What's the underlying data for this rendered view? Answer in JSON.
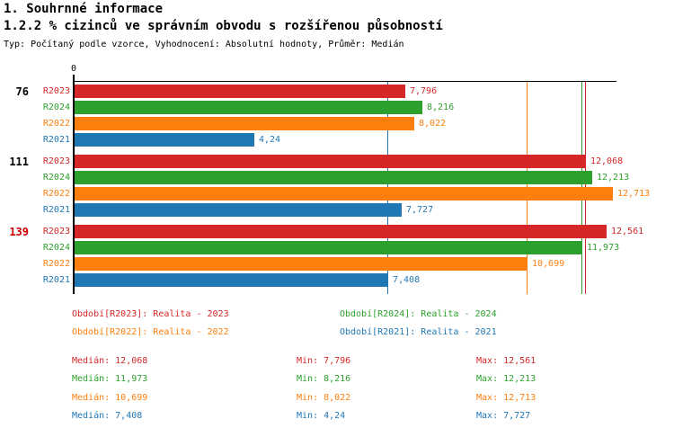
{
  "header": {
    "title": "1. Souhrnné informace",
    "subtitle": "1.2.2 % cizinců ve správním obvodu s rozšířenou působností",
    "meta": "Typ: Počítaný podle vzorce, Vyhodnocení: Absolutní hodnoty, Průměr: Medián"
  },
  "chart_data": {
    "type": "bar",
    "orientation": "horizontal",
    "title": "1.2.2 % cizinců ve správním obvodu s rozšířenou působností",
    "origin_label": "0",
    "xlim": [
      0,
      12.8
    ],
    "grid": false,
    "legend_position": "bottom",
    "group_labels": [
      "76",
      "111",
      "139"
    ],
    "group_label_colors": [
      "#000000",
      "#000000",
      "#cc0000"
    ],
    "series": [
      {
        "name": "R2023",
        "color": "#d62728",
        "values": [
          7.796,
          12.068,
          12.561
        ],
        "value_labels": [
          "7,796",
          "12,068",
          "12,561"
        ],
        "median": 12.068
      },
      {
        "name": "R2024",
        "color": "#2ca02c",
        "values": [
          8.216,
          12.213,
          11.973
        ],
        "value_labels": [
          "8,216",
          "12,213",
          "11,973"
        ],
        "median": 11.973
      },
      {
        "name": "R2022",
        "color": "#ff7f0e",
        "values": [
          8.022,
          12.713,
          10.699
        ],
        "value_labels": [
          "8,022",
          "12,713",
          "10,699"
        ],
        "median": 10.699
      },
      {
        "name": "R2021",
        "color": "#1f77b4",
        "values": [
          4.24,
          7.727,
          7.408
        ],
        "value_labels": [
          "4,24",
          "7,727",
          "7,408"
        ],
        "median": 7.408
      }
    ]
  },
  "legend": {
    "items": [
      {
        "label": "Období[R2023]: Realita - 2023",
        "color": "#d62728"
      },
      {
        "label": "Období[R2024]: Realita - 2024",
        "color": "#2ca02c"
      },
      {
        "label": "Období[R2022]: Realita - 2022",
        "color": "#ff7f0e"
      },
      {
        "label": "Období[R2021]: Realita - 2021",
        "color": "#1f77b4"
      }
    ]
  },
  "stats": {
    "rows": [
      {
        "color": "#d62728",
        "cells": [
          "Medián: 12,068",
          "Min: 7,796",
          "Max: 12,561"
        ]
      },
      {
        "color": "#2ca02c",
        "cells": [
          "Medián: 11,973",
          "Min: 8,216",
          "Max: 12,213"
        ]
      },
      {
        "color": "#ff7f0e",
        "cells": [
          "Medián: 10,699",
          "Min: 8,022",
          "Max: 12,713"
        ]
      },
      {
        "color": "#1f77b4",
        "cells": [
          "Medián: 7,408",
          "Min: 4,24",
          "Max: 7,727"
        ]
      }
    ]
  }
}
